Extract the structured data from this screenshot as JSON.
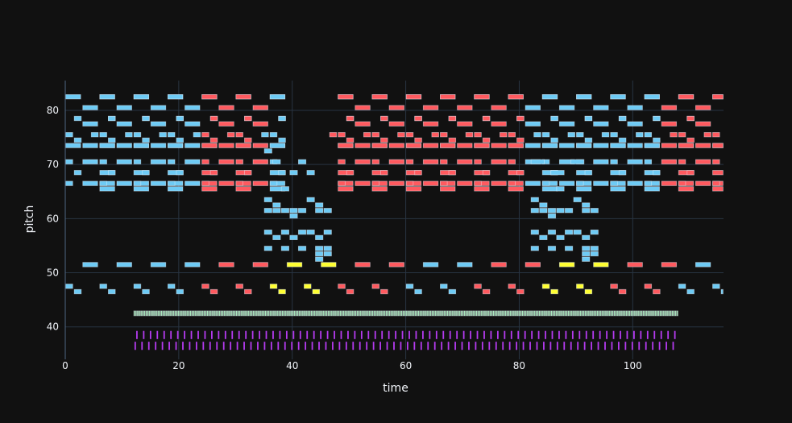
{
  "chart_data": {
    "type": "piano-roll",
    "title": "",
    "xlabel": "time",
    "ylabel": "pitch",
    "xlim": [
      0,
      116
    ],
    "ylim": [
      34,
      85.5
    ],
    "xticks": [
      0,
      20,
      40,
      60,
      80,
      100
    ],
    "yticks": [
      40,
      50,
      60,
      70,
      80
    ],
    "grid": true,
    "colors": {
      "background": "#111111",
      "grid": "#283442",
      "blue": "#6ecbf5",
      "red": "#ff5a5f",
      "yellow": "#ffff33",
      "green": "#8ee6a0",
      "purple": "#b53bf0"
    },
    "layers": {
      "blue_melody_windows": [
        [
          0,
          23.5
        ],
        [
          47,
          69.5
        ],
        [
          82,
          116
        ]
      ],
      "blue_melody_pattern": [
        [
          0,
          82.5,
          2.8
        ],
        [
          3,
          80.5,
          2.8
        ],
        [
          1.5,
          78.5,
          1.4
        ],
        [
          3,
          77.5,
          2.8
        ],
        [
          7.5,
          78.5,
          1.4
        ],
        [
          6,
          82.5,
          2.8
        ],
        [
          0,
          75.5,
          1.4
        ],
        [
          1.5,
          74.5,
          1.4
        ],
        [
          0,
          73.5,
          2.8
        ],
        [
          3,
          73.5,
          2.8
        ],
        [
          6,
          73.5,
          2.8
        ],
        [
          4.5,
          75.5,
          1.4
        ],
        [
          0,
          70.5,
          1.4
        ],
        [
          1.5,
          68.5,
          1.4
        ],
        [
          3,
          70.5,
          2.8
        ],
        [
          6,
          68.5,
          2.8
        ],
        [
          0,
          66.5,
          1.4
        ],
        [
          3,
          66.5,
          2.8
        ],
        [
          6,
          66.5,
          2.8
        ],
        [
          6,
          65.5,
          2.8
        ]
      ],
      "blue_bass_windows": [
        [
          0,
          40
        ],
        [
          59,
          80
        ],
        [
          104,
          116
        ]
      ],
      "red_windows": [
        [
          23.5,
          35
        ],
        [
          47,
          70.5
        ],
        [
          70.5,
          82
        ],
        [
          105,
          116
        ]
      ],
      "lowblue_notes": [
        [
          35,
          72.5,
          1.5
        ],
        [
          36.5,
          70.5,
          1.5
        ],
        [
          39.5,
          68.5,
          1.5
        ],
        [
          41,
          70.5,
          1.5
        ],
        [
          42.5,
          68.5,
          1.5
        ],
        [
          35,
          63.5,
          1.5
        ],
        [
          36.5,
          62.5,
          1.5
        ],
        [
          35,
          61.5,
          1.5
        ],
        [
          36.5,
          61.5,
          1.5
        ],
        [
          38,
          61.5,
          1.5
        ],
        [
          39.5,
          61.5,
          1.5
        ],
        [
          41,
          61.5,
          1.5
        ],
        [
          42.5,
          63.5,
          1.5
        ],
        [
          44,
          62.5,
          1.5
        ],
        [
          44,
          61.5,
          1.5
        ],
        [
          45.5,
          61.5,
          1.5
        ],
        [
          39.5,
          60.5,
          1.5
        ],
        [
          38,
          65.5,
          1.5
        ],
        [
          35,
          57.5,
          1.5
        ],
        [
          38,
          57.5,
          1.5
        ],
        [
          41,
          57.5,
          1.5
        ],
        [
          42.5,
          57.5,
          1.5
        ],
        [
          45.5,
          57.5,
          1.5
        ],
        [
          36.5,
          56.5,
          1.5
        ],
        [
          39.5,
          56.5,
          1.5
        ],
        [
          44,
          56.5,
          1.5
        ],
        [
          35,
          54.5,
          1.5
        ],
        [
          38,
          54.5,
          1.5
        ],
        [
          41,
          54.5,
          1.5
        ],
        [
          44,
          54.5,
          1.5
        ],
        [
          45.5,
          54.5,
          1.5
        ],
        [
          44,
          53.5,
          1.5
        ],
        [
          45.5,
          53.5,
          1.5
        ],
        [
          44,
          52.5,
          1.5
        ],
        [
          82,
          70.5,
          2.5
        ],
        [
          85.5,
          68.5,
          2.5
        ],
        [
          89,
          70.5,
          2.5
        ],
        [
          82,
          63.5,
          1.5
        ],
        [
          83.5,
          62.5,
          1.5
        ],
        [
          82,
          61.5,
          1.5
        ],
        [
          83.5,
          61.5,
          1.5
        ],
        [
          85,
          61.5,
          1.5
        ],
        [
          86.5,
          61.5,
          1.5
        ],
        [
          88,
          61.5,
          1.5
        ],
        [
          89.5,
          63.5,
          1.5
        ],
        [
          91,
          62.5,
          1.5
        ],
        [
          91,
          61.5,
          1.5
        ],
        [
          92.5,
          61.5,
          1.5
        ],
        [
          85,
          60.5,
          1.5
        ],
        [
          86.5,
          65.5,
          1.5
        ],
        [
          82,
          57.5,
          1.5
        ],
        [
          85,
          57.5,
          1.5
        ],
        [
          88,
          57.5,
          1.5
        ],
        [
          89.5,
          57.5,
          1.5
        ],
        [
          92.5,
          57.5,
          1.5
        ],
        [
          83.5,
          56.5,
          1.5
        ],
        [
          86.5,
          56.5,
          1.5
        ],
        [
          91,
          56.5,
          1.5
        ],
        [
          82,
          54.5,
          1.5
        ],
        [
          85,
          54.5,
          1.5
        ],
        [
          88,
          54.5,
          1.5
        ],
        [
          91,
          54.5,
          1.5
        ],
        [
          92.5,
          54.5,
          1.5
        ],
        [
          91,
          53.5,
          1.5
        ],
        [
          92.5,
          53.5,
          1.5
        ],
        [
          91,
          52.5,
          1.5
        ]
      ],
      "row51_notes": [
        [
          3,
          2.8,
          "blue"
        ],
        [
          9,
          2.8,
          "blue"
        ],
        [
          15,
          2.8,
          "blue"
        ],
        [
          21,
          2.8,
          "blue"
        ],
        [
          27,
          2.8,
          "red"
        ],
        [
          33,
          2.8,
          "red"
        ],
        [
          39,
          2.8,
          "yellow"
        ],
        [
          45,
          2.8,
          "yellow"
        ],
        [
          51,
          2.8,
          "red"
        ],
        [
          57,
          2.8,
          "red"
        ],
        [
          63,
          2.8,
          "blue"
        ],
        [
          69,
          2.8,
          "blue"
        ],
        [
          75,
          2.8,
          "red"
        ],
        [
          81,
          2.8,
          "red"
        ],
        [
          87,
          2.8,
          "yellow"
        ],
        [
          93,
          2.8,
          "yellow"
        ],
        [
          99,
          2.8,
          "red"
        ],
        [
          105,
          2.8,
          "red"
        ],
        [
          111,
          2.8,
          "blue"
        ],
        [
          117,
          2.8,
          "blue"
        ]
      ],
      "row47_pairs": [
        [
          0,
          "blue"
        ],
        [
          6,
          "blue"
        ],
        [
          12,
          "blue"
        ],
        [
          18,
          "blue"
        ],
        [
          24,
          "red"
        ],
        [
          30,
          "red"
        ],
        [
          36,
          "yellow"
        ],
        [
          42,
          "yellow"
        ],
        [
          48,
          "red"
        ],
        [
          54,
          "red"
        ],
        [
          60,
          "blue"
        ],
        [
          66,
          "blue"
        ],
        [
          72,
          "red"
        ],
        [
          78,
          "red"
        ],
        [
          84,
          "yellow"
        ],
        [
          90,
          "yellow"
        ],
        [
          96,
          "red"
        ],
        [
          102,
          "red"
        ],
        [
          108,
          "blue"
        ],
        [
          114,
          "blue"
        ]
      ],
      "green_ticks": {
        "start": 12,
        "end": 108,
        "step": 0.3,
        "pitch": 42.5
      },
      "purple_rows": [
        {
          "start": 12.5,
          "end": 108.5,
          "step": 1.2,
          "pitch": 38.5
        },
        {
          "start": 12.2,
          "end": 108.2,
          "step": 1.2,
          "pitch": 36.5
        }
      ]
    }
  }
}
